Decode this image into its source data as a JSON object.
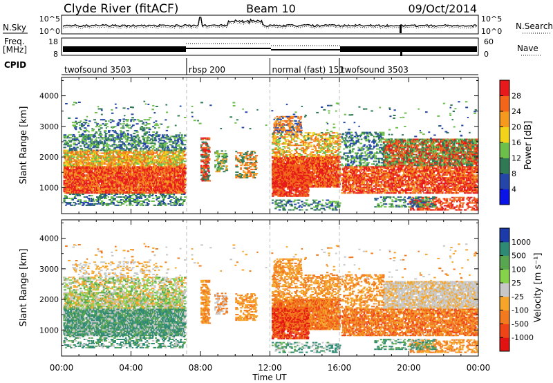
{
  "header": {
    "station": "Clyde River (fitACF)",
    "beam": "Beam 10",
    "date": "09/Oct/2014"
  },
  "top_strip": {
    "left_labels": {
      "nsky": "N.Sky",
      "freq_line1": "Freq.",
      "freq_line2": "[MHz]",
      "cpid": "CPID"
    },
    "right_labels": {
      "nsearch": "N.Search",
      "nave": "Nave"
    },
    "nsky_axis": {
      "top": "10^5",
      "bottom": "10^0"
    },
    "freq_axis": {
      "top": "18",
      "bottom": "8"
    },
    "nave_axis": {
      "top": "60",
      "bottom": "0"
    }
  },
  "cpid_segments": [
    {
      "label": "twofsound 3503",
      "start_hour": 0
    },
    {
      "label": "rbsp 200",
      "start_hour": 7.2
    },
    {
      "label": "normal (fast) 151",
      "start_hour": 12.0
    },
    {
      "label": "twofsound 3503",
      "start_hour": 16.0
    }
  ],
  "time_axis": {
    "label": "Time UT",
    "ticks": [
      "00:00",
      "04:00",
      "08:00",
      "12:00",
      "16:00",
      "20:00",
      "00:00"
    ]
  },
  "chart_data": [
    {
      "type": "heatmap",
      "panel": "power",
      "ylabel": "Slant Range [km]",
      "yticks": [
        "1000",
        "2000",
        "3000",
        "4000"
      ],
      "ylim": [
        150,
        4600
      ],
      "xlim_hours": [
        0,
        24
      ],
      "colorbar_label": "Power [dB]",
      "colorbar_ticks": [
        "4",
        "8",
        "12",
        "16",
        "20",
        "24",
        "28"
      ],
      "colorbar_colors": [
        "#0a14e6",
        "#2446a8",
        "#2f7a55",
        "#6cbf4a",
        "#f2d21a",
        "#f59a1f",
        "#f2661c",
        "#e61a1a"
      ]
    },
    {
      "type": "heatmap",
      "panel": "velocity",
      "ylabel": "Slant Range [km]",
      "yticks": [
        "1000",
        "2000",
        "3000",
        "4000"
      ],
      "ylim": [
        150,
        4600
      ],
      "xlim_hours": [
        0,
        24
      ],
      "colorbar_label": "Velocity [m s⁻¹]",
      "colorbar_ticks": [
        "1000",
        "500",
        "100",
        "25",
        "-25",
        "-100",
        "-500",
        "-1000"
      ],
      "colorbar_colors": [
        "#1c3aa8",
        "#2f8a73",
        "#58a64f",
        "#86d24a",
        "#c8c8c8",
        "#f5a62a",
        "#f27a1e",
        "#ee4418",
        "#e11212"
      ]
    }
  ]
}
